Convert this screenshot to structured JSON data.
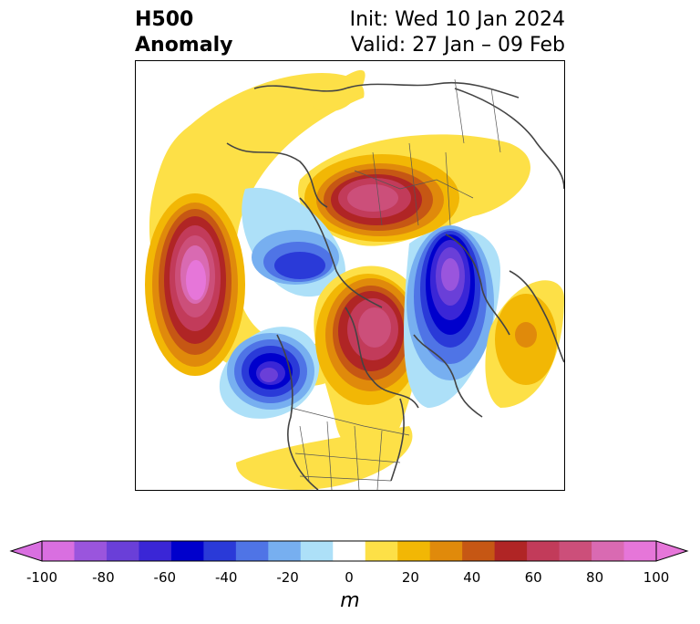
{
  "title": {
    "left_line1": "H500",
    "left_line2": "Anomaly",
    "right_line1": "Init: Wed 10 Jan 2024",
    "right_line2": "Valid: 27 Jan – 09 Feb"
  },
  "map": {
    "projection": "polar stereographic, North Hemisphere",
    "features": [
      {
        "name": "northeast-pacific-ridge",
        "sign": "positive",
        "peak_m": 90
      },
      {
        "name": "alaska-trough",
        "sign": "negative",
        "peak_m": -50
      },
      {
        "name": "arctic-siberia-ridge",
        "sign": "positive",
        "peak_m": 70
      },
      {
        "name": "western-canada-trough",
        "sign": "negative",
        "peak_m": -80
      },
      {
        "name": "eastern-canada-greenland-ridge",
        "sign": "positive",
        "peak_m": 80
      },
      {
        "name": "north-atlantic-europe-trough",
        "sign": "negative",
        "peak_m": -90
      },
      {
        "name": "eastern-atlantic-ridge",
        "sign": "positive",
        "peak_m": 40
      }
    ]
  },
  "colorbar": {
    "levels": [
      -100,
      -90,
      -80,
      -70,
      -60,
      -50,
      -40,
      -30,
      -20,
      -10,
      10,
      20,
      30,
      40,
      50,
      60,
      70,
      80,
      90,
      100
    ],
    "colors": [
      "#d96fe0",
      "#9a55dd",
      "#6a3fd8",
      "#3a26d6",
      "#0000cc",
      "#2a3ad8",
      "#4f74e6",
      "#77aff0",
      "#ade0f8",
      "#ffffff",
      "#fde047",
      "#f2b705",
      "#e08a0b",
      "#c65714",
      "#b02525",
      "#c23b5a",
      "#cc4f7a",
      "#d96ab2",
      "#e676d9"
    ],
    "over_color": "#e676d9",
    "under_color": "#d96fe0",
    "tick_values": [
      "-100",
      "-80",
      "-60",
      "-40",
      "-20",
      "0",
      "20",
      "40",
      "60",
      "80",
      "100"
    ],
    "units": "m"
  }
}
